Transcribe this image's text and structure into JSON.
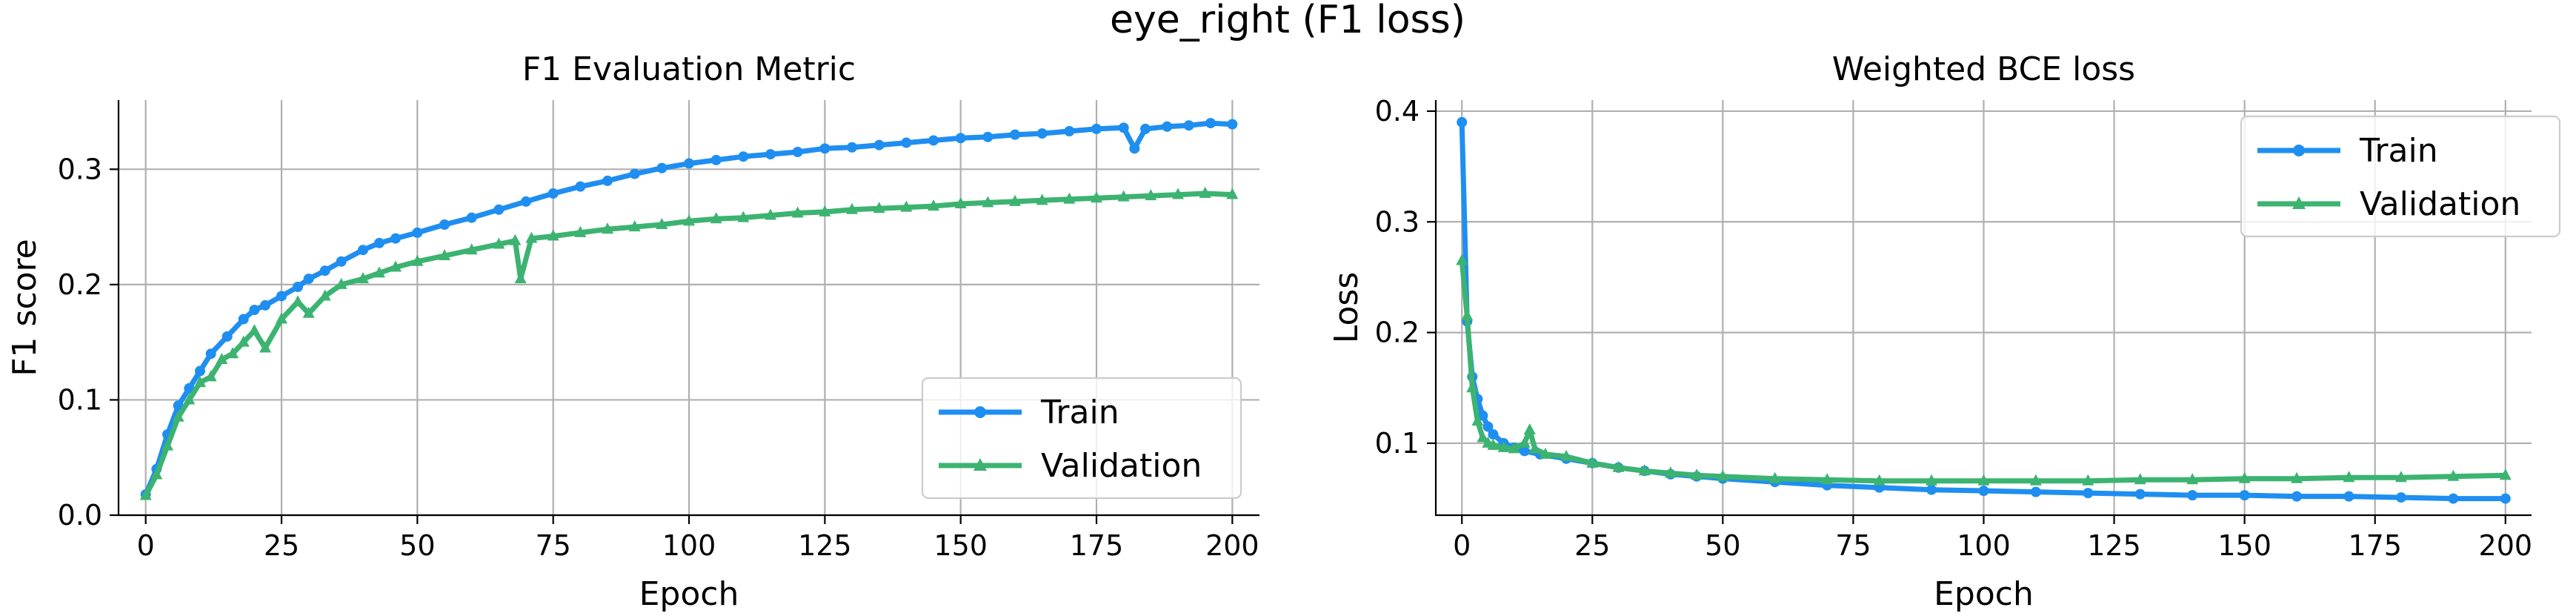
{
  "figure": {
    "suptitle": "eye_right (F1 loss)"
  },
  "colors": {
    "train": "#1f8ef1",
    "validation": "#3cb371"
  },
  "chart_data": [
    {
      "type": "line",
      "title": "F1 Evaluation Metric",
      "xlabel": "Epoch",
      "ylabel": "F1 score",
      "xlim": [
        -5,
        205
      ],
      "ylim": [
        0,
        0.36
      ],
      "xticks": [
        0,
        25,
        50,
        75,
        100,
        125,
        150,
        175,
        200
      ],
      "yticks": [
        0.0,
        0.1,
        0.2,
        0.3
      ],
      "ytick_labels": [
        "0.0",
        "0.1",
        "0.2",
        "0.3"
      ],
      "grid": true,
      "legend": "lower-right",
      "series": [
        {
          "name": "Train",
          "color_key": "train",
          "marker": "dot",
          "points": [
            [
              0,
              0.018
            ],
            [
              2,
              0.04
            ],
            [
              4,
              0.07
            ],
            [
              6,
              0.095
            ],
            [
              8,
              0.11
            ],
            [
              10,
              0.125
            ],
            [
              12,
              0.14
            ],
            [
              15,
              0.155
            ],
            [
              18,
              0.17
            ],
            [
              20,
              0.178
            ],
            [
              22,
              0.182
            ],
            [
              25,
              0.19
            ],
            [
              28,
              0.198
            ],
            [
              30,
              0.205
            ],
            [
              33,
              0.212
            ],
            [
              36,
              0.22
            ],
            [
              40,
              0.23
            ],
            [
              43,
              0.236
            ],
            [
              46,
              0.24
            ],
            [
              50,
              0.245
            ],
            [
              55,
              0.252
            ],
            [
              60,
              0.258
            ],
            [
              65,
              0.265
            ],
            [
              70,
              0.272
            ],
            [
              75,
              0.279
            ],
            [
              80,
              0.285
            ],
            [
              85,
              0.29
            ],
            [
              90,
              0.296
            ],
            [
              95,
              0.301
            ],
            [
              100,
              0.305
            ],
            [
              105,
              0.308
            ],
            [
              110,
              0.311
            ],
            [
              115,
              0.313
            ],
            [
              120,
              0.315
            ],
            [
              125,
              0.318
            ],
            [
              130,
              0.319
            ],
            [
              135,
              0.321
            ],
            [
              140,
              0.323
            ],
            [
              145,
              0.325
            ],
            [
              150,
              0.327
            ],
            [
              155,
              0.328
            ],
            [
              160,
              0.33
            ],
            [
              165,
              0.331
            ],
            [
              170,
              0.333
            ],
            [
              175,
              0.335
            ],
            [
              180,
              0.336
            ],
            [
              182,
              0.318
            ],
            [
              184,
              0.335
            ],
            [
              188,
              0.337
            ],
            [
              192,
              0.338
            ],
            [
              196,
              0.34
            ],
            [
              200,
              0.339
            ]
          ]
        },
        {
          "name": "Validation",
          "color_key": "validation",
          "marker": "tri",
          "points": [
            [
              0,
              0.017
            ],
            [
              2,
              0.035
            ],
            [
              4,
              0.06
            ],
            [
              6,
              0.085
            ],
            [
              8,
              0.1
            ],
            [
              10,
              0.115
            ],
            [
              12,
              0.12
            ],
            [
              14,
              0.135
            ],
            [
              16,
              0.14
            ],
            [
              18,
              0.15
            ],
            [
              20,
              0.16
            ],
            [
              22,
              0.145
            ],
            [
              25,
              0.17
            ],
            [
              28,
              0.185
            ],
            [
              30,
              0.175
            ],
            [
              33,
              0.19
            ],
            [
              36,
              0.2
            ],
            [
              40,
              0.205
            ],
            [
              43,
              0.21
            ],
            [
              46,
              0.215
            ],
            [
              50,
              0.22
            ],
            [
              55,
              0.225
            ],
            [
              60,
              0.23
            ],
            [
              65,
              0.235
            ],
            [
              68,
              0.238
            ],
            [
              69,
              0.205
            ],
            [
              71,
              0.24
            ],
            [
              75,
              0.242
            ],
            [
              80,
              0.245
            ],
            [
              85,
              0.248
            ],
            [
              90,
              0.25
            ],
            [
              95,
              0.252
            ],
            [
              100,
              0.255
            ],
            [
              105,
              0.257
            ],
            [
              110,
              0.258
            ],
            [
              115,
              0.26
            ],
            [
              120,
              0.262
            ],
            [
              125,
              0.263
            ],
            [
              130,
              0.265
            ],
            [
              135,
              0.266
            ],
            [
              140,
              0.267
            ],
            [
              145,
              0.268
            ],
            [
              150,
              0.27
            ],
            [
              155,
              0.271
            ],
            [
              160,
              0.272
            ],
            [
              165,
              0.273
            ],
            [
              170,
              0.274
            ],
            [
              175,
              0.275
            ],
            [
              180,
              0.276
            ],
            [
              185,
              0.277
            ],
            [
              190,
              0.278
            ],
            [
              195,
              0.279
            ],
            [
              200,
              0.278
            ]
          ]
        }
      ]
    },
    {
      "type": "line",
      "title": "Weighted BCE loss",
      "xlabel": "Epoch",
      "ylabel": "Loss",
      "xlim": [
        -5,
        205
      ],
      "ylim": [
        0.035,
        0.41
      ],
      "xticks": [
        0,
        25,
        50,
        75,
        100,
        125,
        150,
        175,
        200
      ],
      "yticks": [
        0.1,
        0.2,
        0.3,
        0.4
      ],
      "ytick_labels": [
        "0.1",
        "0.2",
        "0.3",
        "0.4"
      ],
      "grid": true,
      "legend": "top-right",
      "series": [
        {
          "name": "Train",
          "color_key": "train",
          "marker": "dot",
          "points": [
            [
              0,
              0.39
            ],
            [
              1,
              0.21
            ],
            [
              2,
              0.16
            ],
            [
              3,
              0.14
            ],
            [
              4,
              0.125
            ],
            [
              5,
              0.115
            ],
            [
              6,
              0.108
            ],
            [
              8,
              0.1
            ],
            [
              10,
              0.096
            ],
            [
              12,
              0.093
            ],
            [
              15,
              0.09
            ],
            [
              20,
              0.086
            ],
            [
              25,
              0.082
            ],
            [
              30,
              0.078
            ],
            [
              35,
              0.075
            ],
            [
              40,
              0.072
            ],
            [
              45,
              0.07
            ],
            [
              50,
              0.068
            ],
            [
              60,
              0.065
            ],
            [
              70,
              0.062
            ],
            [
              80,
              0.06
            ],
            [
              90,
              0.058
            ],
            [
              100,
              0.057
            ],
            [
              110,
              0.056
            ],
            [
              120,
              0.055
            ],
            [
              130,
              0.054
            ],
            [
              140,
              0.053
            ],
            [
              150,
              0.053
            ],
            [
              160,
              0.052
            ],
            [
              170,
              0.052
            ],
            [
              180,
              0.051
            ],
            [
              190,
              0.05
            ],
            [
              200,
              0.05
            ]
          ]
        },
        {
          "name": "Validation",
          "color_key": "validation",
          "marker": "tri",
          "points": [
            [
              0,
              0.265
            ],
            [
              1,
              0.215
            ],
            [
              2,
              0.15
            ],
            [
              3,
              0.12
            ],
            [
              4,
              0.105
            ],
            [
              5,
              0.1
            ],
            [
              6,
              0.098
            ],
            [
              8,
              0.096
            ],
            [
              10,
              0.095
            ],
            [
              12,
              0.1
            ],
            [
              13,
              0.112
            ],
            [
              14,
              0.095
            ],
            [
              16,
              0.09
            ],
            [
              20,
              0.088
            ],
            [
              25,
              0.082
            ],
            [
              30,
              0.078
            ],
            [
              35,
              0.075
            ],
            [
              40,
              0.073
            ],
            [
              45,
              0.071
            ],
            [
              50,
              0.07
            ],
            [
              60,
              0.068
            ],
            [
              70,
              0.067
            ],
            [
              80,
              0.066
            ],
            [
              90,
              0.066
            ],
            [
              100,
              0.066
            ],
            [
              110,
              0.066
            ],
            [
              120,
              0.066
            ],
            [
              130,
              0.067
            ],
            [
              140,
              0.067
            ],
            [
              150,
              0.068
            ],
            [
              160,
              0.068
            ],
            [
              170,
              0.069
            ],
            [
              180,
              0.069
            ],
            [
              190,
              0.07
            ],
            [
              200,
              0.071
            ]
          ]
        }
      ]
    }
  ]
}
